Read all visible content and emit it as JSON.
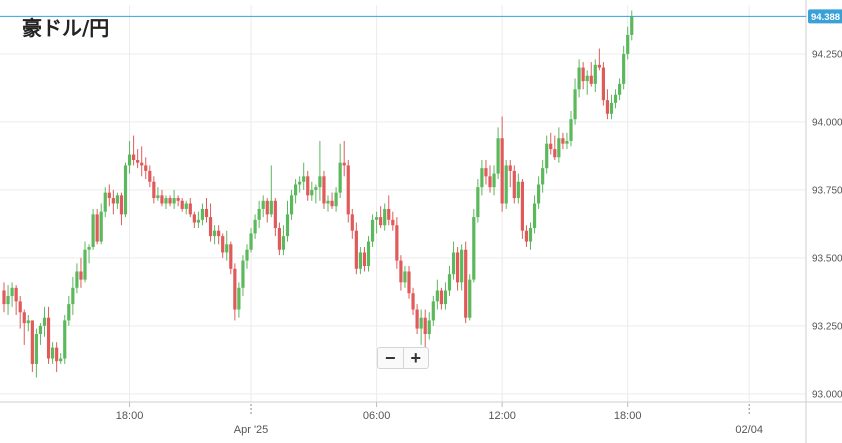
{
  "title": "豪ドル/円",
  "zoom": {
    "minus_label": "−",
    "plus_label": "+"
  },
  "chart_data": {
    "type": "candlestick",
    "title": "豪ドル/円",
    "current_price": 94.388,
    "current_price_label": "94.388",
    "y_range": [
      92.97,
      94.43
    ],
    "y_ticks": [
      "94.250",
      "94.000",
      "93.750",
      "93.500",
      "93.250",
      "93.000"
    ],
    "y_tick_values": [
      94.25,
      94.0,
      93.75,
      93.5,
      93.25,
      93.0
    ],
    "x_ticks": [
      "18:00",
      "Apr '25",
      "06:00",
      "12:00",
      "18:00",
      "02/04"
    ],
    "x_tick_index": [
      31,
      61,
      92,
      123,
      154,
      184
    ],
    "x_dotted_index": [
      61,
      184
    ],
    "grid": true,
    "colors": {
      "up": "#5cb85c",
      "down": "#e05a5a",
      "price_line": "#3aa0d8",
      "price_tag": "#3aa0d8"
    },
    "ohlc": [
      [
        93.38,
        93.41,
        93.3,
        93.33
      ],
      [
        93.33,
        93.4,
        93.29,
        93.36
      ],
      [
        93.36,
        93.41,
        93.32,
        93.39
      ],
      [
        93.39,
        93.4,
        93.29,
        93.34
      ],
      [
        93.34,
        93.36,
        93.24,
        93.3
      ],
      [
        93.3,
        93.31,
        93.18,
        93.26
      ],
      [
        93.26,
        93.29,
        93.23,
        93.27
      ],
      [
        93.27,
        93.27,
        93.08,
        93.11
      ],
      [
        93.11,
        93.24,
        93.06,
        93.22
      ],
      [
        93.22,
        93.26,
        93.18,
        93.25
      ],
      [
        93.25,
        93.32,
        93.21,
        93.28
      ],
      [
        93.28,
        93.32,
        93.11,
        93.13
      ],
      [
        93.13,
        93.19,
        93.11,
        93.17
      ],
      [
        93.17,
        93.19,
        93.08,
        93.12
      ],
      [
        93.12,
        93.15,
        93.11,
        93.13
      ],
      [
        93.13,
        93.29,
        93.11,
        93.27
      ],
      [
        93.27,
        93.36,
        93.25,
        93.33
      ],
      [
        93.33,
        93.43,
        93.29,
        93.39
      ],
      [
        93.39,
        93.48,
        93.37,
        93.45
      ],
      [
        93.45,
        93.5,
        93.39,
        93.42
      ],
      [
        93.42,
        93.56,
        93.41,
        93.53
      ],
      [
        93.53,
        93.55,
        93.48,
        93.54
      ],
      [
        93.54,
        93.68,
        93.53,
        93.66
      ],
      [
        93.66,
        93.68,
        93.55,
        93.56
      ],
      [
        93.56,
        93.7,
        93.55,
        93.67
      ],
      [
        93.67,
        93.76,
        93.65,
        93.74
      ],
      [
        93.74,
        93.77,
        93.69,
        93.72
      ],
      [
        93.72,
        93.75,
        93.66,
        93.7
      ],
      [
        93.7,
        93.74,
        93.68,
        93.73
      ],
      [
        93.73,
        93.74,
        93.62,
        93.66
      ],
      [
        93.66,
        93.85,
        93.65,
        93.84
      ],
      [
        93.84,
        93.93,
        93.81,
        93.88
      ],
      [
        93.88,
        93.95,
        93.84,
        93.86
      ],
      [
        93.86,
        93.9,
        93.83,
        93.85
      ],
      [
        93.85,
        93.91,
        93.8,
        93.84
      ],
      [
        93.84,
        93.87,
        93.79,
        93.82
      ],
      [
        93.82,
        93.84,
        93.76,
        93.78
      ],
      [
        93.78,
        93.8,
        93.7,
        93.72
      ],
      [
        93.72,
        93.76,
        93.71,
        93.73
      ],
      [
        93.73,
        93.75,
        93.69,
        93.7
      ],
      [
        93.7,
        93.73,
        93.68,
        93.72
      ],
      [
        93.72,
        93.73,
        93.69,
        93.7
      ],
      [
        93.7,
        93.75,
        93.68,
        93.72
      ],
      [
        93.72,
        93.73,
        93.69,
        93.71
      ],
      [
        93.71,
        93.72,
        93.67,
        93.68
      ],
      [
        93.68,
        93.71,
        93.66,
        93.7
      ],
      [
        93.7,
        93.72,
        93.65,
        93.66
      ],
      [
        93.66,
        93.67,
        93.61,
        93.63
      ],
      [
        93.63,
        93.67,
        93.61,
        93.64
      ],
      [
        93.64,
        93.7,
        93.62,
        93.68
      ],
      [
        93.68,
        93.72,
        93.63,
        93.65
      ],
      [
        93.65,
        93.7,
        93.56,
        93.58
      ],
      [
        93.58,
        93.62,
        93.55,
        93.6
      ],
      [
        93.6,
        93.62,
        93.55,
        93.58
      ],
      [
        93.58,
        93.59,
        93.5,
        93.52
      ],
      [
        93.52,
        93.6,
        93.49,
        93.55
      ],
      [
        93.55,
        93.56,
        93.44,
        93.46
      ],
      [
        93.46,
        93.48,
        93.27,
        93.31
      ],
      [
        93.31,
        93.41,
        93.28,
        93.39
      ],
      [
        93.39,
        93.51,
        93.36,
        93.49
      ],
      [
        93.49,
        93.55,
        93.46,
        93.53
      ],
      [
        93.53,
        93.61,
        93.52,
        93.59
      ],
      [
        93.59,
        93.66,
        93.57,
        93.64
      ],
      [
        93.64,
        93.71,
        93.61,
        93.68
      ],
      [
        93.68,
        93.73,
        93.65,
        93.71
      ],
      [
        93.71,
        93.72,
        93.63,
        93.66
      ],
      [
        93.66,
        93.84,
        93.65,
        93.71
      ],
      [
        93.71,
        93.72,
        93.58,
        93.61
      ],
      [
        93.61,
        93.63,
        93.51,
        93.53
      ],
      [
        93.53,
        93.62,
        93.51,
        93.58
      ],
      [
        93.58,
        93.71,
        93.56,
        93.66
      ],
      [
        93.66,
        93.75,
        93.64,
        93.73
      ],
      [
        93.73,
        93.79,
        93.7,
        93.77
      ],
      [
        93.77,
        93.8,
        93.74,
        93.78
      ],
      [
        93.78,
        93.85,
        93.75,
        93.8
      ],
      [
        93.8,
        93.82,
        93.71,
        93.73
      ],
      [
        93.73,
        93.78,
        93.71,
        93.75
      ],
      [
        93.75,
        93.77,
        93.7,
        93.76
      ],
      [
        93.76,
        93.93,
        93.71,
        93.8
      ],
      [
        93.8,
        93.82,
        93.68,
        93.7
      ],
      [
        93.7,
        93.73,
        93.67,
        93.71
      ],
      [
        93.71,
        93.74,
        93.68,
        93.69
      ],
      [
        93.69,
        93.76,
        93.67,
        93.74
      ],
      [
        93.74,
        93.92,
        93.72,
        93.85
      ],
      [
        93.85,
        93.93,
        93.8,
        93.84
      ],
      [
        93.84,
        93.86,
        93.63,
        93.66
      ],
      [
        93.66,
        93.68,
        93.57,
        93.6
      ],
      [
        93.6,
        93.63,
        93.44,
        93.46
      ],
      [
        93.46,
        93.54,
        93.44,
        93.52
      ],
      [
        93.52,
        93.54,
        93.45,
        93.47
      ],
      [
        93.47,
        93.58,
        93.45,
        93.56
      ],
      [
        93.56,
        93.66,
        93.54,
        93.64
      ],
      [
        93.64,
        93.67,
        93.59,
        93.65
      ],
      [
        93.65,
        93.69,
        93.61,
        93.62
      ],
      [
        93.62,
        93.7,
        93.6,
        93.68
      ],
      [
        93.68,
        93.73,
        93.62,
        93.64
      ],
      [
        93.64,
        93.67,
        93.6,
        93.62
      ],
      [
        93.62,
        93.65,
        93.46,
        93.49
      ],
      [
        93.49,
        93.51,
        93.38,
        93.41
      ],
      [
        93.41,
        93.47,
        93.39,
        93.45
      ],
      [
        93.45,
        93.47,
        93.35,
        93.37
      ],
      [
        93.37,
        93.39,
        93.29,
        93.31
      ],
      [
        93.31,
        93.33,
        93.22,
        93.24
      ],
      [
        93.24,
        93.31,
        93.18,
        93.28
      ],
      [
        93.28,
        93.31,
        93.17,
        93.22
      ],
      [
        93.22,
        93.3,
        93.2,
        93.27
      ],
      [
        93.27,
        93.36,
        93.25,
        93.34
      ],
      [
        93.34,
        93.42,
        93.31,
        93.38
      ],
      [
        93.38,
        93.39,
        93.31,
        93.33
      ],
      [
        93.33,
        93.41,
        93.31,
        93.38
      ],
      [
        93.38,
        93.47,
        93.36,
        93.44
      ],
      [
        93.44,
        93.56,
        93.42,
        93.52
      ],
      [
        93.52,
        93.54,
        93.38,
        93.41
      ],
      [
        93.41,
        93.55,
        93.38,
        93.53
      ],
      [
        93.53,
        93.56,
        93.26,
        93.28
      ],
      [
        93.28,
        93.44,
        93.27,
        93.42
      ],
      [
        93.42,
        93.68,
        93.41,
        93.65
      ],
      [
        93.65,
        93.79,
        93.63,
        93.76
      ],
      [
        93.76,
        93.86,
        93.73,
        93.83
      ],
      [
        93.83,
        93.86,
        93.77,
        93.8
      ],
      [
        93.8,
        93.84,
        93.74,
        93.76
      ],
      [
        93.76,
        93.84,
        93.73,
        93.81
      ],
      [
        93.81,
        93.98,
        93.79,
        93.94
      ],
      [
        93.94,
        94.02,
        93.67,
        93.7
      ],
      [
        93.7,
        93.86,
        93.68,
        93.84
      ],
      [
        93.84,
        93.86,
        93.76,
        93.82
      ],
      [
        93.82,
        93.84,
        93.7,
        93.72
      ],
      [
        93.72,
        93.81,
        93.7,
        93.78
      ],
      [
        93.78,
        93.79,
        93.57,
        93.6
      ],
      [
        93.6,
        93.62,
        93.54,
        93.56
      ],
      [
        93.56,
        93.63,
        93.53,
        93.61
      ],
      [
        93.61,
        93.73,
        93.59,
        93.7
      ],
      [
        93.7,
        93.8,
        93.68,
        93.77
      ],
      [
        93.77,
        93.86,
        93.74,
        93.83
      ],
      [
        93.83,
        93.95,
        93.81,
        93.92
      ],
      [
        93.92,
        93.96,
        93.88,
        93.9
      ],
      [
        93.9,
        93.95,
        93.86,
        93.87
      ],
      [
        93.87,
        93.98,
        93.85,
        93.94
      ],
      [
        93.94,
        93.96,
        93.9,
        93.92
      ],
      [
        93.92,
        93.96,
        93.9,
        93.93
      ],
      [
        93.93,
        94.04,
        93.91,
        94.01
      ],
      [
        94.01,
        94.16,
        93.99,
        94.12
      ],
      [
        94.12,
        94.23,
        94.09,
        94.2
      ],
      [
        94.2,
        94.22,
        94.12,
        94.15
      ],
      [
        94.15,
        94.19,
        94.1,
        94.17
      ],
      [
        94.17,
        94.22,
        94.13,
        94.14
      ],
      [
        94.14,
        94.23,
        94.11,
        94.21
      ],
      [
        94.21,
        94.27,
        94.19,
        94.2
      ],
      [
        94.2,
        94.22,
        94.06,
        94.08
      ],
      [
        94.08,
        94.12,
        94.01,
        94.03
      ],
      [
        94.03,
        94.1,
        94.01,
        94.07
      ],
      [
        94.07,
        94.12,
        94.05,
        94.1
      ],
      [
        94.1,
        94.16,
        94.08,
        94.14
      ],
      [
        94.14,
        94.28,
        94.12,
        94.25
      ],
      [
        94.25,
        94.35,
        94.23,
        94.32
      ],
      [
        94.32,
        94.41,
        94.3,
        94.388
      ]
    ]
  }
}
